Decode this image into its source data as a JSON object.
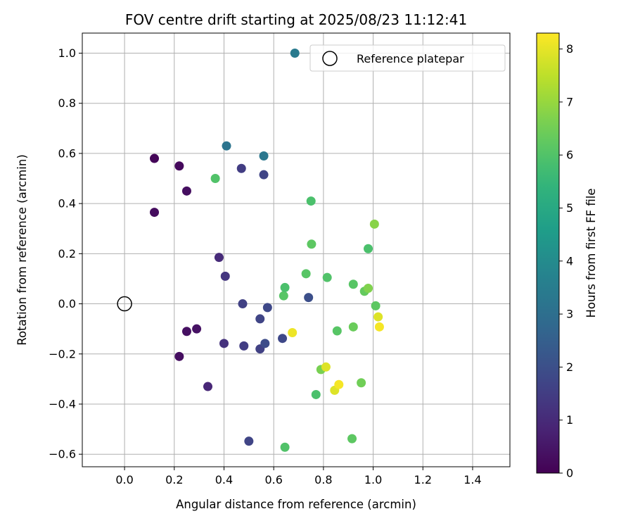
{
  "chart_data": {
    "type": "scatter",
    "title": "FOV centre drift starting at 2025/08/23 11:12:41",
    "xlabel": "Angular distance from reference (arcmin)",
    "ylabel": "Rotation from reference (arcmin)",
    "xlim": [
      -0.17,
      1.55
    ],
    "ylim": [
      -0.65,
      1.08
    ],
    "xticks": [
      0.0,
      0.2,
      0.4,
      0.6,
      0.8,
      1.0,
      1.2,
      1.4
    ],
    "xtick_labels": [
      "0.0",
      "0.2",
      "0.4",
      "0.6",
      "0.8",
      "1.0",
      "1.2",
      "1.4"
    ],
    "yticks": [
      -0.6,
      -0.4,
      -0.2,
      0.0,
      0.2,
      0.4,
      0.6,
      0.8,
      1.0
    ],
    "ytick_labels": [
      "−0.6",
      "−0.4",
      "−0.2",
      "0.0",
      "0.2",
      "0.4",
      "0.6",
      "0.8",
      "1.0"
    ],
    "grid": true,
    "colormap": "viridis",
    "colorbar": {
      "label": "Hours from first FF file",
      "range": [
        0,
        8.3
      ],
      "ticks": [
        0,
        1,
        2,
        3,
        4,
        5,
        6,
        7,
        8
      ],
      "tick_labels": [
        "0",
        "1",
        "2",
        "3",
        "4",
        "5",
        "6",
        "7",
        "8"
      ]
    },
    "legend": {
      "placement": "upper-right",
      "entries": [
        {
          "label": "Reference platepar",
          "marker": "open-circle"
        }
      ]
    },
    "reference_point": {
      "x": 0.0,
      "y": 0.0
    },
    "points": [
      {
        "x": 0.12,
        "y": 0.58,
        "c": 0.1
      },
      {
        "x": 0.22,
        "y": 0.55,
        "c": 0.2
      },
      {
        "x": 0.25,
        "y": 0.45,
        "c": 0.3
      },
      {
        "x": 0.12,
        "y": 0.365,
        "c": 0.25
      },
      {
        "x": 0.22,
        "y": -0.21,
        "c": 0.3
      },
      {
        "x": 0.25,
        "y": -0.11,
        "c": 0.35
      },
      {
        "x": 0.29,
        "y": -0.1,
        "c": 0.4
      },
      {
        "x": 0.335,
        "y": -0.33,
        "c": 0.9
      },
      {
        "x": 0.38,
        "y": 0.185,
        "c": 1.0
      },
      {
        "x": 0.4,
        "y": -0.158,
        "c": 1.2
      },
      {
        "x": 0.405,
        "y": 0.11,
        "c": 1.3
      },
      {
        "x": 0.47,
        "y": 0.54,
        "c": 1.5
      },
      {
        "x": 0.475,
        "y": 0.0,
        "c": 1.6
      },
      {
        "x": 0.48,
        "y": -0.168,
        "c": 1.5
      },
      {
        "x": 0.5,
        "y": -0.548,
        "c": 1.7
      },
      {
        "x": 0.545,
        "y": -0.06,
        "c": 1.7
      },
      {
        "x": 0.545,
        "y": -0.18,
        "c": 1.6
      },
      {
        "x": 0.56,
        "y": 0.515,
        "c": 1.7
      },
      {
        "x": 0.565,
        "y": -0.158,
        "c": 1.9
      },
      {
        "x": 0.575,
        "y": -0.015,
        "c": 1.8
      },
      {
        "x": 0.635,
        "y": -0.138,
        "c": 1.8
      },
      {
        "x": 0.74,
        "y": 0.025,
        "c": 2.0
      },
      {
        "x": 0.41,
        "y": 0.63,
        "c": 3.2
      },
      {
        "x": 0.56,
        "y": 0.59,
        "c": 3.3
      },
      {
        "x": 0.685,
        "y": 1.0,
        "c": 3.4
      },
      {
        "x": 0.365,
        "y": 0.5,
        "c": 6.0
      },
      {
        "x": 0.64,
        "y": 0.032,
        "c": 6.1
      },
      {
        "x": 0.645,
        "y": 0.065,
        "c": 5.9
      },
      {
        "x": 0.645,
        "y": -0.572,
        "c": 6.0
      },
      {
        "x": 0.73,
        "y": 0.12,
        "c": 6.1
      },
      {
        "x": 0.75,
        "y": 0.41,
        "c": 5.9
      },
      {
        "x": 0.752,
        "y": 0.238,
        "c": 6.2
      },
      {
        "x": 0.77,
        "y": -0.362,
        "c": 5.9
      },
      {
        "x": 0.79,
        "y": -0.262,
        "c": 6.6
      },
      {
        "x": 0.815,
        "y": 0.105,
        "c": 6.0
      },
      {
        "x": 0.855,
        "y": -0.108,
        "c": 6.1
      },
      {
        "x": 0.915,
        "y": -0.538,
        "c": 6.2
      },
      {
        "x": 0.92,
        "y": 0.078,
        "c": 6.1
      },
      {
        "x": 0.92,
        "y": -0.092,
        "c": 6.4
      },
      {
        "x": 0.952,
        "y": -0.315,
        "c": 6.5
      },
      {
        "x": 0.965,
        "y": 0.05,
        "c": 6.3
      },
      {
        "x": 0.98,
        "y": 0.22,
        "c": 5.9
      },
      {
        "x": 0.98,
        "y": 0.062,
        "c": 6.7
      },
      {
        "x": 1.005,
        "y": 0.318,
        "c": 6.8
      },
      {
        "x": 1.01,
        "y": -0.008,
        "c": 6.2
      },
      {
        "x": 0.675,
        "y": -0.115,
        "c": 8.1
      },
      {
        "x": 0.81,
        "y": -0.252,
        "c": 7.9
      },
      {
        "x": 0.845,
        "y": -0.345,
        "c": 7.9
      },
      {
        "x": 0.862,
        "y": -0.322,
        "c": 8.2
      },
      {
        "x": 1.02,
        "y": -0.052,
        "c": 7.9
      },
      {
        "x": 1.025,
        "y": -0.092,
        "c": 8.2
      }
    ]
  }
}
